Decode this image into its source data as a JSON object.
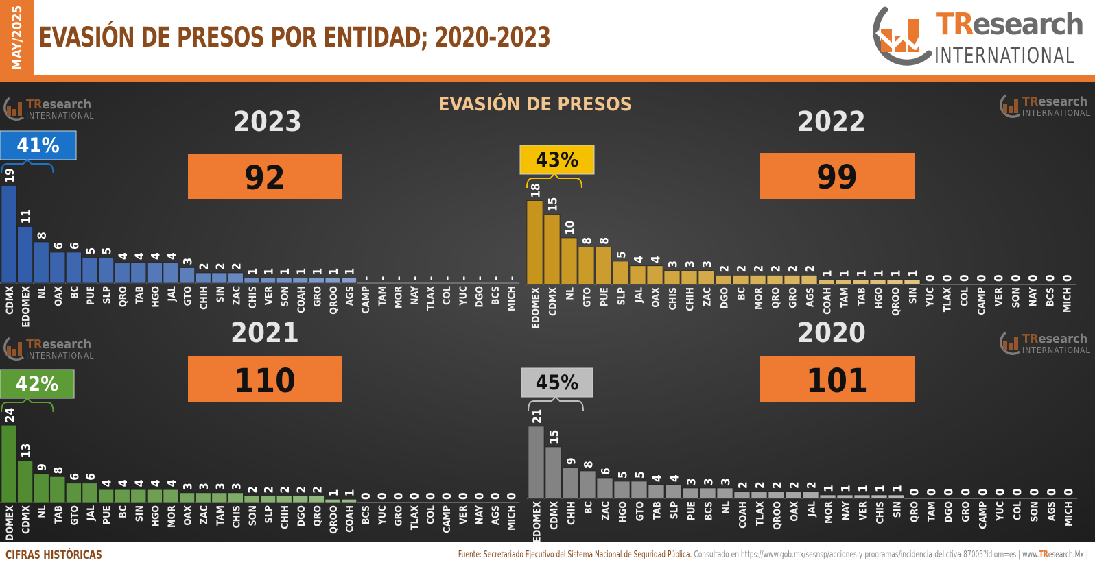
{
  "header": {
    "date_tab": "MAY/2025",
    "title": "EVASIÓN DE PRESOS POR ENTIDAD; 2020-2023",
    "logo_tr": "TR",
    "logo_research": "esearch",
    "logo_sub": "INTERNATIONAL"
  },
  "watermark": {
    "tr": "TR",
    "research": "esearch",
    "sub": "INTERNATIONAL"
  },
  "center_title": "EVASIÓN DE PRESOS",
  "footer": {
    "left": "CIFRAS HISTÓRICAS",
    "source_label": "Fuente: Secretariado Ejecutivo del Sistema Nacional de Seguridad Pública.",
    "consulted": " Consultado en https://www.gob.mx/sesnsp/acciones-y-programas/incidencia-delictiva-87005?idiom=es",
    "web_sep": " | www.",
    "web_tr": "TR",
    "web_rest": "esearch.Mx |"
  },
  "chart_data": [
    {
      "type": "bar",
      "year": "2023",
      "total": "92",
      "top_share": "41%",
      "color": "#2e5aa8",
      "badge_color": "#1a73c9",
      "badge_text_color": "#ffffff",
      "categories": [
        "CDMX",
        "EDOMEX",
        "NL",
        "OAX",
        "BC",
        "PUE",
        "SLP",
        "QRO",
        "TAB",
        "HGO",
        "JAL",
        "GTO",
        "CHIH",
        "SIN",
        "ZAC",
        "CHIS",
        "VER",
        "SON",
        "COAH",
        "GRO",
        "QROO",
        "AGS",
        "CAMP",
        "TAM",
        "MOR",
        "NAY",
        "TLAX",
        "COL",
        "YUC",
        "DGO",
        "BCS",
        "MICH"
      ],
      "values": [
        19,
        11,
        8,
        6,
        6,
        5,
        5,
        4,
        4,
        4,
        4,
        3,
        2,
        2,
        2,
        1,
        1,
        1,
        1,
        1,
        1,
        1,
        0,
        0,
        0,
        0,
        0,
        0,
        0,
        0,
        0,
        0
      ],
      "value_labels": [
        "19",
        "11",
        "8",
        "6",
        "6",
        "5",
        "5",
        "4",
        "4",
        "4",
        "4",
        "3",
        "2",
        "2",
        "2",
        "1",
        "1",
        "1",
        "1",
        "1",
        "1",
        "1",
        "-",
        "-",
        "-",
        "-",
        "-",
        "-",
        "-",
        "-",
        "-",
        "-"
      ]
    },
    {
      "type": "bar",
      "year": "2022",
      "total": "99",
      "top_share": "43%",
      "color": "#c8951c",
      "badge_color": "#f5c000",
      "badge_text_color": "#111111",
      "categories": [
        "EDOMEX",
        "CDMX",
        "NL",
        "GTO",
        "PUE",
        "SLP",
        "JAL",
        "OAX",
        "CHIS",
        "CHIH",
        "ZAC",
        "DGO",
        "BC",
        "MOR",
        "QRO",
        "GRO",
        "AGS",
        "COAH",
        "TAM",
        "TAB",
        "HGO",
        "QROO",
        "SIN",
        "YUC",
        "TLAX",
        "COL",
        "CAMP",
        "VER",
        "SON",
        "NAY",
        "BCS",
        "MICH"
      ],
      "values": [
        18,
        15,
        10,
        8,
        8,
        5,
        4,
        4,
        3,
        3,
        3,
        2,
        2,
        2,
        2,
        2,
        2,
        1,
        1,
        1,
        1,
        1,
        1,
        0,
        0,
        0,
        0,
        0,
        0,
        0,
        0,
        0
      ],
      "value_labels": [
        "18",
        "15",
        "10",
        "8",
        "8",
        "5",
        "4",
        "4",
        "3",
        "3",
        "3",
        "2",
        "2",
        "2",
        "2",
        "2",
        "2",
        "1",
        "1",
        "1",
        "1",
        "1",
        "1",
        "0",
        "0",
        "0",
        "0",
        "0",
        "0",
        "0",
        "0",
        "0"
      ]
    },
    {
      "type": "bar",
      "year": "2021",
      "total": "110",
      "top_share": "42%",
      "color": "#4e8a2e",
      "badge_color": "#5c9b35",
      "badge_text_color": "#ffffff",
      "categories": [
        "EDOMEX",
        "CDMX",
        "NL",
        "TAB",
        "GTO",
        "JAL",
        "PUE",
        "BC",
        "SIN",
        "HGO",
        "MOR",
        "OAX",
        "ZAC",
        "TAM",
        "CHIS",
        "SON",
        "SLP",
        "CHIH",
        "DGO",
        "QRO",
        "QROO",
        "COAH",
        "BCS",
        "YUC",
        "GRO",
        "TLAX",
        "COL",
        "CAMP",
        "VER",
        "NAY",
        "AGS",
        "MICH"
      ],
      "values": [
        24,
        13,
        9,
        8,
        6,
        6,
        4,
        4,
        4,
        4,
        4,
        3,
        3,
        3,
        3,
        2,
        2,
        2,
        2,
        2,
        1,
        1,
        0,
        0,
        0,
        0,
        0,
        0,
        0,
        0,
        0,
        0
      ],
      "value_labels": [
        "24",
        "13",
        "9",
        "8",
        "6",
        "6",
        "4",
        "4",
        "4",
        "4",
        "4",
        "3",
        "3",
        "3",
        "3",
        "2",
        "2",
        "2",
        "2",
        "2",
        "1",
        "1",
        "0",
        "0",
        "0",
        "0",
        "0",
        "0",
        "0",
        "0",
        "0",
        "0"
      ]
    },
    {
      "type": "bar",
      "year": "2020",
      "total": "101",
      "top_share": "45%",
      "color": "#808080",
      "badge_color": "#bdbdbd",
      "badge_text_color": "#111111",
      "categories": [
        "EDOMEX",
        "CDMX",
        "CHIH",
        "BC",
        "ZAC",
        "HGO",
        "GTO",
        "TAB",
        "SLP",
        "PUE",
        "BCS",
        "NL",
        "COAH",
        "TLAX",
        "QROO",
        "OAX",
        "JAL",
        "MOR",
        "NAY",
        "VER",
        "CHIS",
        "SIN",
        "QRO",
        "TAM",
        "DGO",
        "GRO",
        "CAMP",
        "YUC",
        "COL",
        "SON",
        "AGS",
        "MICH"
      ],
      "values": [
        21,
        15,
        9,
        8,
        6,
        5,
        5,
        4,
        4,
        3,
        3,
        3,
        2,
        2,
        2,
        2,
        2,
        1,
        1,
        1,
        1,
        1,
        0,
        0,
        0,
        0,
        0,
        0,
        0,
        0,
        0,
        0
      ],
      "value_labels": [
        "21",
        "15",
        "9",
        "8",
        "6",
        "5",
        "5",
        "4",
        "4",
        "3",
        "3",
        "3",
        "2",
        "2",
        "2",
        "2",
        "2",
        "1",
        "1",
        "1",
        "1",
        "1",
        "0",
        "0",
        "0",
        "0",
        "0",
        "0",
        "0",
        "0",
        "0",
        "0"
      ]
    }
  ]
}
